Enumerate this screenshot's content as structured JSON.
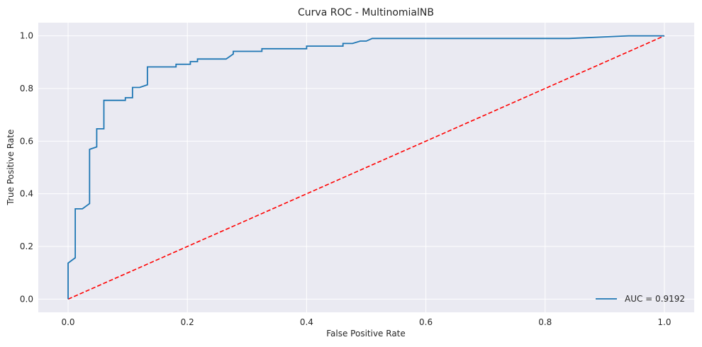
{
  "chart_data": {
    "type": "line",
    "title": "Curva ROC - MultinomialNB",
    "xlabel": "False Positive Rate",
    "ylabel": "True Positive Rate",
    "xlim": [
      -0.05,
      1.05
    ],
    "ylim": [
      -0.05,
      1.05
    ],
    "x_ticks": [
      0.0,
      0.2,
      0.4,
      0.6,
      0.8,
      1.0
    ],
    "x_tick_labels": [
      "0.0",
      "0.2",
      "0.4",
      "0.6",
      "0.8",
      "1.0"
    ],
    "y_ticks": [
      0.0,
      0.2,
      0.4,
      0.6,
      0.8,
      1.0
    ],
    "y_tick_labels": [
      "0.0",
      "0.2",
      "0.4",
      "0.6",
      "0.8",
      "1.0"
    ],
    "grid": true,
    "legend_position": "lower-right",
    "series": [
      {
        "name": "AUC = 0.9192",
        "color": "#1f77b4",
        "style": "solid",
        "x": [
          0,
          0,
          0.012,
          0.012,
          0.024,
          0.036,
          0.036,
          0.048,
          0.048,
          0.06,
          0.06,
          0.096,
          0.096,
          0.108,
          0.108,
          0.12,
          0.133,
          0.133,
          0.181,
          0.181,
          0.205,
          0.205,
          0.217,
          0.217,
          0.265,
          0.277,
          0.277,
          0.325,
          0.325,
          0.4,
          0.4,
          0.461,
          0.461,
          0.477,
          0.49,
          0.5,
          0.51,
          0.52,
          0.84,
          0.94,
          1.0
        ],
        "y": [
          0,
          0.137,
          0.157,
          0.343,
          0.343,
          0.363,
          0.569,
          0.578,
          0.647,
          0.647,
          0.755,
          0.755,
          0.765,
          0.765,
          0.804,
          0.804,
          0.814,
          0.882,
          0.882,
          0.892,
          0.892,
          0.902,
          0.902,
          0.912,
          0.912,
          0.931,
          0.941,
          0.941,
          0.951,
          0.951,
          0.961,
          0.961,
          0.971,
          0.971,
          0.98,
          0.98,
          0.99,
          0.99,
          0.99,
          1.0,
          1.0
        ]
      },
      {
        "name": "",
        "color": "#ff0000",
        "style": "dashed",
        "x": [
          0,
          1
        ],
        "y": [
          0,
          1
        ]
      }
    ],
    "legend_entries": [
      {
        "label": "AUC = 0.9192",
        "color": "#1f77b4"
      }
    ]
  },
  "colors": {
    "plot_background": "#eaeaf2",
    "grid": "#ffffff",
    "text": "#262626"
  }
}
